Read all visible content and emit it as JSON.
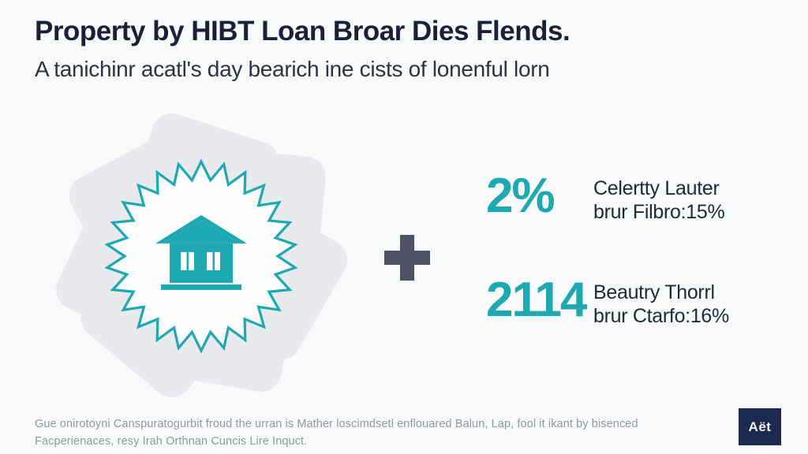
{
  "page": {
    "title": "Property by HIBT Loan Broar Dies Flends.",
    "subtitle": "A tanichinr acatl's day bearich ine cists of lonenful lorn"
  },
  "colors": {
    "background": "#f8fafb",
    "accent_teal": "#1ea8b2",
    "title_navy": "#192038",
    "plus_slate": "#4d5266",
    "petal_gray": "#e8eaed",
    "footer_gray": "#9198a2",
    "logo_navy": "#1c2950"
  },
  "graphic": {
    "icons": [
      "pinwheel-petals",
      "starburst-seal",
      "house-icon",
      "plus-icon"
    ]
  },
  "stats": [
    {
      "value": "2%",
      "label_line1": "Celertty Lauter",
      "label_line2": "brur Filbro:15%"
    },
    {
      "value": "2114",
      "label_line1": "Beautry Thorrl",
      "label_line2": "brur Ctarfo:16%"
    }
  ],
  "footer": {
    "line1": "Gue onirotoyni Canspuratogurbit froud the urran is Mather loscimdsetl enflouared Balun, Lap, fool it ikant by bisenced",
    "line2": "Facperienaces, resy Irah Orthnan Cuncis Lire Inquct.",
    "logo_text": "Aët"
  }
}
